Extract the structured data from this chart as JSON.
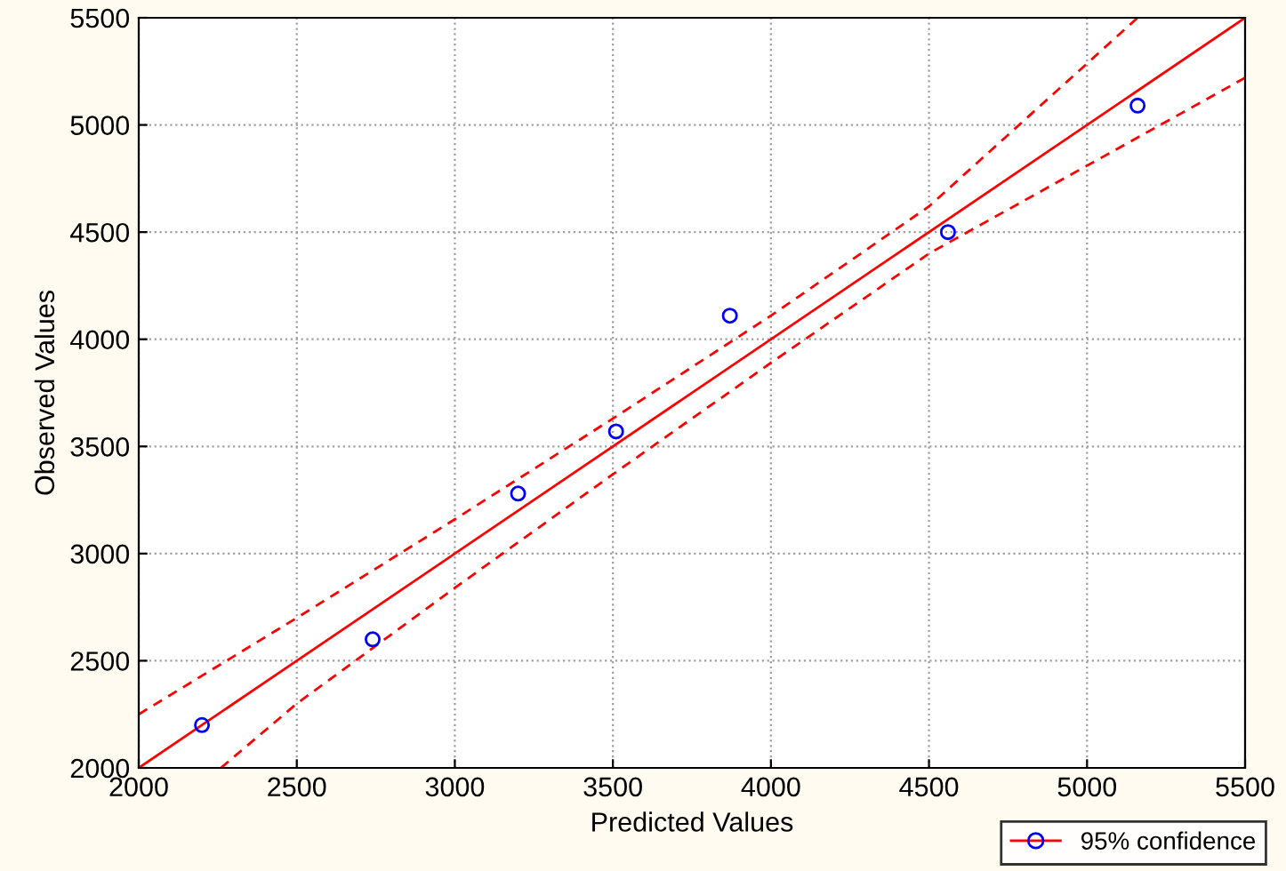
{
  "chart_data": {
    "type": "scatter",
    "xlabel": "Predicted Values",
    "ylabel": "Observed Values",
    "xlim": [
      2000,
      5500
    ],
    "ylim": [
      2000,
      5500
    ],
    "xticks": [
      2000,
      2500,
      3000,
      3500,
      4000,
      4500,
      5000,
      5500
    ],
    "yticks": [
      2000,
      2500,
      3000,
      3500,
      4000,
      4500,
      5000,
      5500
    ],
    "grid": true,
    "legend": "bottom right",
    "series": [
      {
        "name": "95% confidence",
        "marker": "circle",
        "color": "#0000ff",
        "x": [
          2200,
          2740,
          3200,
          3510,
          3870,
          4560,
          5160
        ],
        "values": [
          2200,
          2600,
          3280,
          3570,
          4110,
          4500,
          5090
        ]
      },
      {
        "type": "line",
        "color": "#ff0000",
        "line_style": "solid",
        "x": [
          2000,
          5500
        ],
        "values": [
          2000,
          5500
        ]
      },
      {
        "type": "line",
        "color": "#ff0000",
        "line_style": "dashed",
        "x": [
          2000,
          2500,
          3000,
          3500,
          4000,
          4500,
          5160
        ],
        "values": [
          2250,
          2700,
          3160,
          3630,
          4110,
          4620,
          5500
        ]
      },
      {
        "type": "line",
        "color": "#ff0000",
        "line_style": "dashed",
        "x": [
          2260,
          2500,
          3000,
          3500,
          4000,
          4500,
          5000,
          5500
        ],
        "values": [
          2000,
          2300,
          2840,
          3370,
          3890,
          4400,
          4810,
          5220
        ]
      }
    ]
  }
}
